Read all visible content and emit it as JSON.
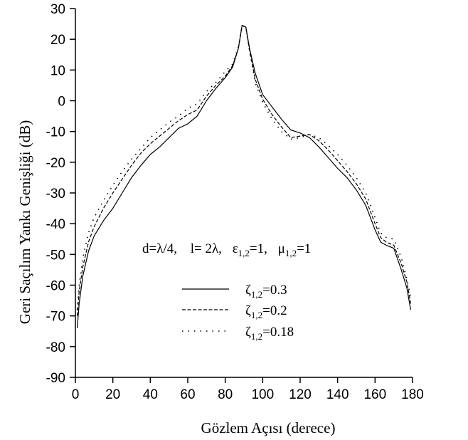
{
  "chart_data": {
    "type": "line",
    "title": "",
    "xlabel": "Gözlem Açısı (derece)",
    "ylabel": "Geri Saçılım Yankı Genişliği (dB)",
    "xlim": [
      0,
      180
    ],
    "ylim": [
      -90,
      30
    ],
    "xticks": [
      "0",
      "20",
      "40",
      "60",
      "80",
      "100",
      "120",
      "140",
      "160",
      "180"
    ],
    "yticks": [
      "30",
      "20",
      "10",
      "0",
      "-10",
      "-20",
      "-30",
      "-40",
      "-50",
      "-60",
      "-70",
      "-80",
      "-90"
    ],
    "grid": false,
    "legend_position": "center",
    "annotation": {
      "d": "d=λ/4,",
      "l": "l= 2λ,",
      "eps": "ε",
      "eps_sub": "1,2",
      "eps_val": "=1,",
      "mu": "μ",
      "mu_sub": "1,2",
      "mu_val": "=1"
    },
    "series": [
      {
        "name": "ζ1,2=0.3",
        "symbol": "ζ",
        "sub": "1,2",
        "value_text": "=0.3",
        "style": "solid",
        "x": [
          1,
          2,
          4,
          7,
          10,
          15,
          20,
          25,
          30,
          35,
          40,
          45,
          50,
          55,
          60,
          65,
          70,
          75,
          80,
          84,
          87,
          89,
          91,
          93,
          96,
          100,
          105,
          110,
          115,
          120,
          125,
          130,
          135,
          140,
          145,
          150,
          155,
          160,
          163,
          166,
          170,
          174,
          177,
          179
        ],
        "y": [
          -74,
          -66,
          -57,
          -49,
          -44,
          -39,
          -35,
          -30,
          -25,
          -21,
          -17.5,
          -15,
          -12,
          -9,
          -7.5,
          -5,
          0,
          4,
          7.5,
          11,
          17,
          24.5,
          24,
          17,
          9,
          2,
          -2,
          -6,
          -9.5,
          -10.5,
          -12,
          -15,
          -18.5,
          -22,
          -25,
          -29,
          -34,
          -42,
          -46,
          -47,
          -48,
          -55,
          -61,
          -68
        ]
      },
      {
        "name": "ζ1,2=0.2",
        "symbol": "ζ",
        "sub": "1,2",
        "value_text": "=0.2",
        "style": "dashed",
        "x": [
          1,
          2,
          4,
          7,
          10,
          15,
          20,
          25,
          30,
          35,
          40,
          45,
          50,
          55,
          60,
          65,
          70,
          75,
          80,
          84,
          87,
          89,
          91,
          93,
          96,
          100,
          105,
          110,
          115,
          120,
          125,
          130,
          135,
          140,
          145,
          150,
          155,
          160,
          163,
          166,
          170,
          174,
          177,
          179
        ],
        "y": [
          -70,
          -62,
          -54,
          -46,
          -41,
          -35,
          -30,
          -25.5,
          -21,
          -17,
          -14,
          -11.5,
          -9,
          -6.5,
          -4.5,
          -3,
          1.5,
          5,
          8,
          11.5,
          17,
          24.5,
          24,
          16.5,
          7,
          0.5,
          -4.5,
          -8.5,
          -12,
          -11.5,
          -11,
          -13,
          -16,
          -19.5,
          -23,
          -27,
          -32,
          -40,
          -44.5,
          -46,
          -47,
          -53,
          -59,
          -66
        ]
      },
      {
        "name": "ζ1,2=0.18",
        "symbol": "ζ",
        "sub": "1,2",
        "value_text": "=0.18",
        "style": "dotted",
        "x": [
          1,
          2,
          4,
          7,
          10,
          15,
          20,
          25,
          30,
          35,
          40,
          45,
          50,
          55,
          60,
          65,
          70,
          75,
          80,
          84,
          87,
          89,
          91,
          93,
          96,
          100,
          105,
          110,
          115,
          120,
          125,
          130,
          135,
          140,
          145,
          150,
          155,
          160,
          163,
          166,
          170,
          174,
          177,
          179
        ],
        "y": [
          -68,
          -60,
          -51,
          -43,
          -38,
          -32.5,
          -27.5,
          -23,
          -19,
          -15.5,
          -12,
          -9.5,
          -7,
          -5,
          -2.5,
          -1,
          3,
          6,
          9.5,
          12,
          17.5,
          24.5,
          24,
          16,
          6,
          -0.5,
          -6,
          -10,
          -12.5,
          -12,
          -11,
          -12,
          -14.5,
          -17.5,
          -21,
          -25,
          -30,
          -38,
          -43,
          -44.5,
          -45,
          -51,
          -58,
          -64
        ]
      }
    ]
  }
}
